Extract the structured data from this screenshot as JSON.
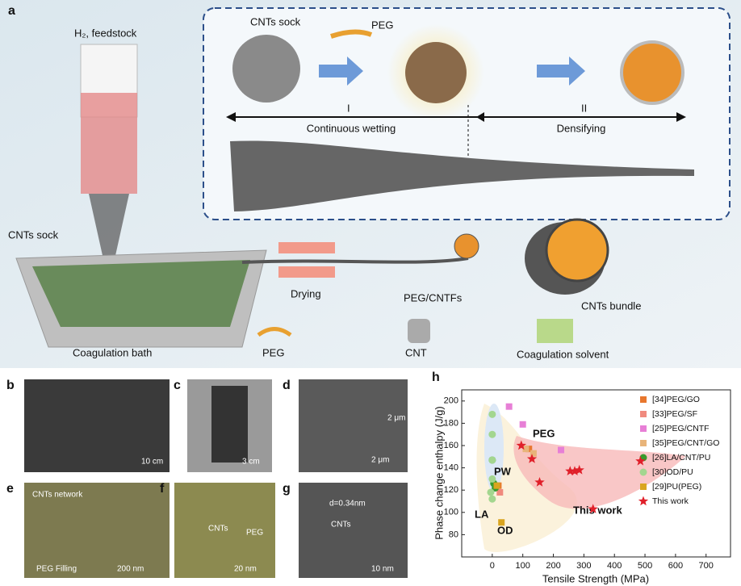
{
  "figure": {
    "panel_a": {
      "letter": "a",
      "feed": "H₂,  feedstock",
      "sock_top": "CNTs sock",
      "peg_top": "PEG",
      "stage1": "I",
      "stage2": "II",
      "wetting": "Continuous wetting",
      "densifying": "Densifying",
      "sock_left": "CNTs sock",
      "drying": "Drying",
      "fiber": "PEG/CNTFs",
      "bundle": "CNTs bundle",
      "bath": "Coagulation bath",
      "peg_bottom": "PEG",
      "cnt": "CNT",
      "solvent": "Coagulation solvent"
    },
    "panel_b": {
      "letter": "b",
      "scale": "10 cm"
    },
    "panel_c": {
      "letter": "c",
      "scale": "3 cm"
    },
    "panel_d": {
      "letter": "d",
      "scale": "2 μm",
      "inset_scale": "2 μm"
    },
    "panel_e": {
      "letter": "e",
      "network": "CNTs network",
      "filling": "PEG Filling",
      "scale": "200 nm"
    },
    "panel_f": {
      "letter": "f",
      "cnts": "CNTs",
      "peg": "PEG",
      "scale": "20 nm"
    },
    "panel_g": {
      "letter": "g",
      "spacing": "d=0.34nm",
      "cnts": "CNTs",
      "scale": "10 nm"
    },
    "panel_h": {
      "letter": "h"
    }
  },
  "chart_data": {
    "type": "scatter",
    "x_label": "Tensile Strength (MPa)",
    "y_label": "Phase change enthalpy (J/g)",
    "xlim": [
      -100,
      780
    ],
    "ylim": [
      60,
      210
    ],
    "xticks": [
      0,
      100,
      200,
      300,
      400,
      500,
      600,
      700
    ],
    "yticks": [
      80,
      100,
      120,
      140,
      160,
      180,
      200
    ],
    "annotations": [
      "PEG",
      "PW",
      "LA",
      "OD",
      "This work"
    ],
    "series": [
      {
        "name": "[34]PEG/GO",
        "color": "#e8772e",
        "marker": "square",
        "x": [
          120,
          20
        ],
        "values": [
          157,
          124
        ]
      },
      {
        "name": "[33]PEG/SF",
        "color": "#f08a7e",
        "marker": "square",
        "x": [
          25
        ],
        "values": [
          118
        ]
      },
      {
        "name": "[25]PEG/CNTF",
        "color": "#e77fd6",
        "marker": "square",
        "x": [
          55,
          100,
          225
        ],
        "values": [
          195,
          179,
          156
        ]
      },
      {
        "name": "[35]PEG/CNT/GO",
        "color": "#e8b47a",
        "marker": "square",
        "x": [
          135,
          110
        ],
        "values": [
          153,
          157
        ]
      },
      {
        "name": "[26]LA/CNT/PU",
        "color": "#3a9a2e",
        "marker": "circle",
        "x": [
          0,
          5,
          10
        ],
        "values": [
          147,
          126,
          122
        ]
      },
      {
        "name": "[30]OD/PU",
        "color": "#a3d68f",
        "marker": "circle",
        "x": [
          0,
          0,
          0,
          0,
          0,
          -5
        ],
        "values": [
          188,
          170,
          147,
          130,
          112,
          118
        ]
      },
      {
        "name": "[29]PU(PEG)",
        "color": "#d9a520",
        "marker": "square",
        "x": [
          30,
          15
        ],
        "values": [
          91,
          124
        ]
      },
      {
        "name": "This work",
        "color": "#e0202a",
        "marker": "star",
        "x": [
          95,
          130,
          155,
          255,
          270,
          285,
          330,
          485
        ],
        "values": [
          160,
          148,
          127,
          137,
          137,
          138,
          103,
          146
        ]
      }
    ]
  }
}
